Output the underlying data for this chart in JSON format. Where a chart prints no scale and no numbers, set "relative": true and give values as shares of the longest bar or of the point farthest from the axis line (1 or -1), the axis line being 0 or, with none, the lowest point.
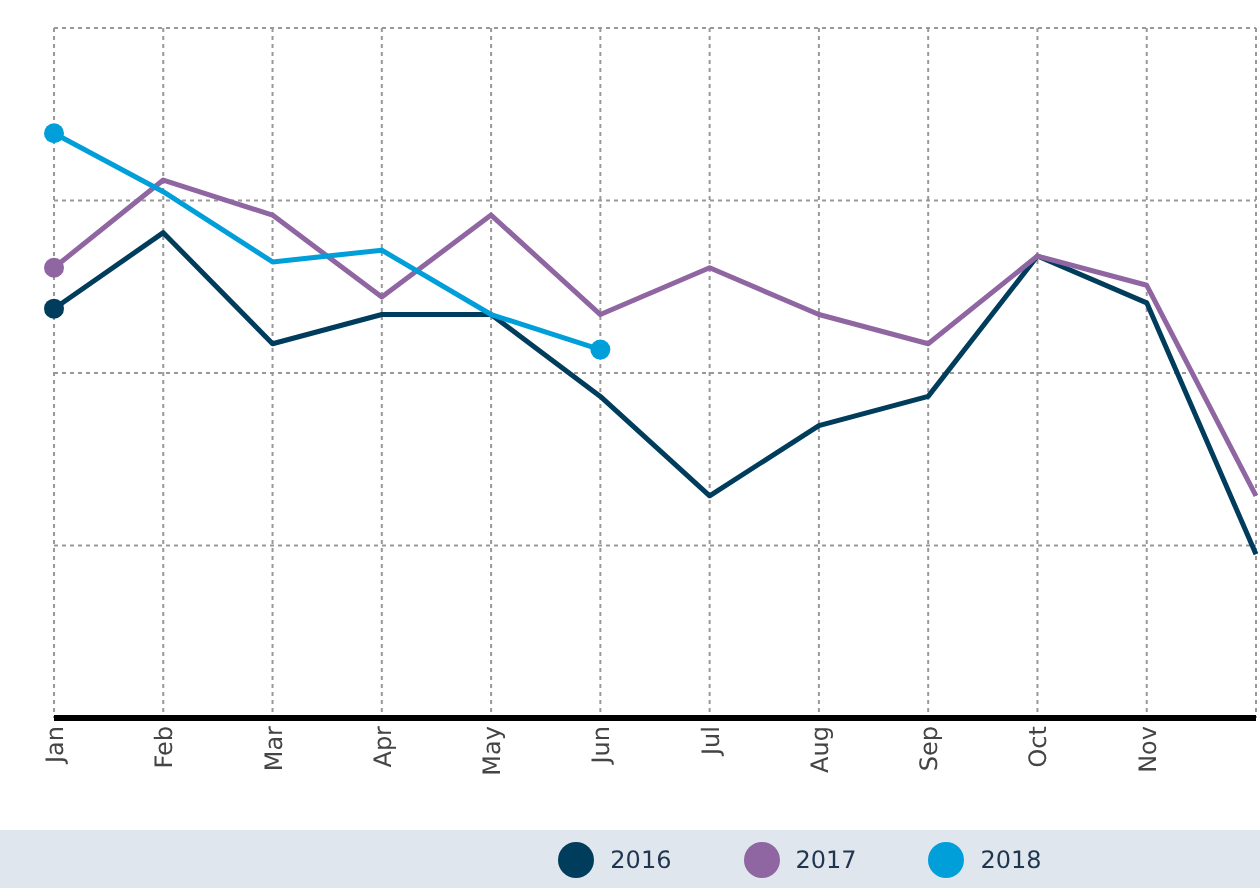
{
  "chart_data": {
    "type": "line",
    "relative": true,
    "categories": [
      "Jan",
      "Feb",
      "Mar",
      "Apr",
      "May",
      "Jun",
      "Jul",
      "Aug",
      "Sep",
      "Oct",
      "Nov",
      null
    ],
    "series": [
      {
        "name": "2016",
        "color": "#003d5c",
        "values": [
          0.7,
          0.83,
          0.64,
          0.69,
          0.69,
          0.55,
          0.38,
          0.5,
          0.55,
          0.79,
          0.71,
          0.28
        ]
      },
      {
        "name": "2017",
        "color": "#8f66a1",
        "values": [
          0.77,
          0.92,
          0.86,
          0.72,
          0.86,
          0.69,
          0.77,
          0.69,
          0.64,
          0.79,
          0.74,
          0.38
        ]
      },
      {
        "name": "2018",
        "color": "#009fda",
        "values": [
          1.0,
          0.9,
          0.78,
          0.8,
          0.69,
          0.63,
          null,
          null,
          null,
          null,
          null,
          null
        ]
      }
    ],
    "grid": true,
    "legend": "bottom",
    "line_style": "solid"
  }
}
